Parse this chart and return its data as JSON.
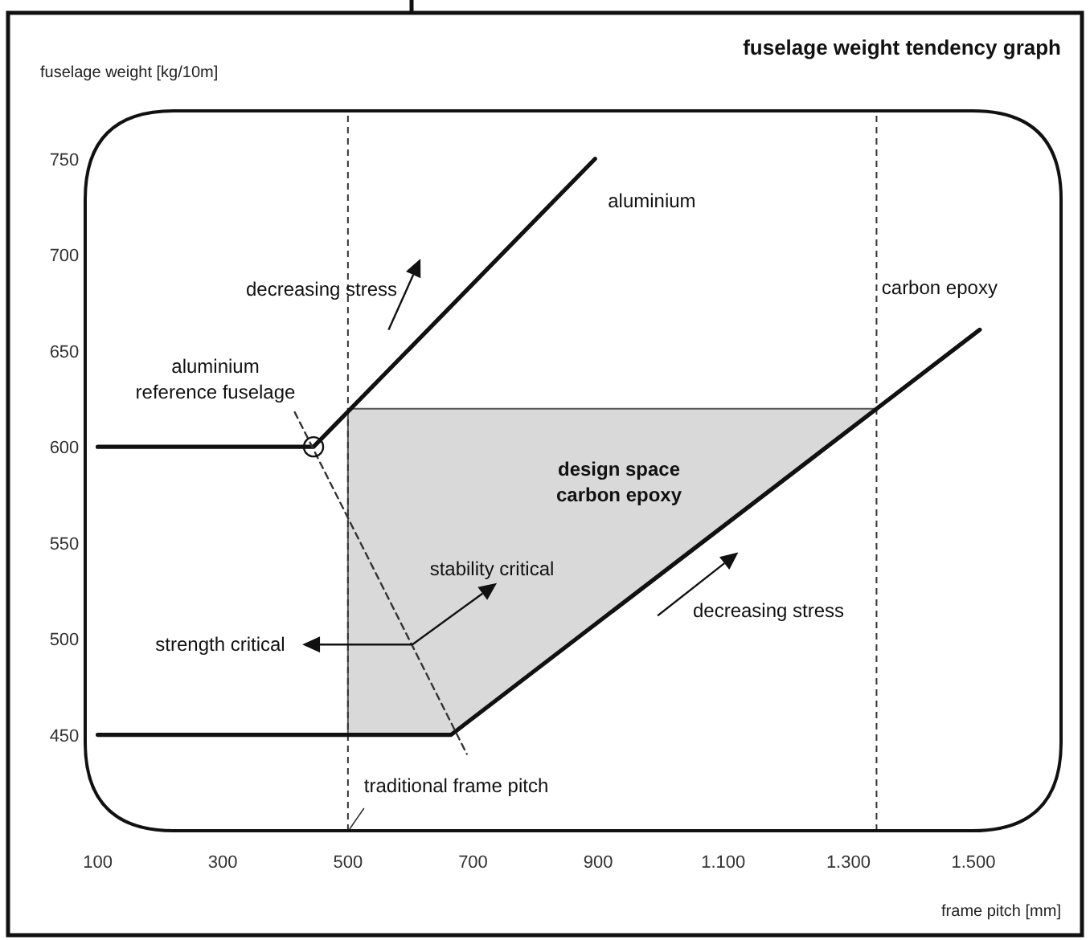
{
  "chart_data": {
    "type": "line",
    "title": "fuselage weight tendency graph",
    "xlabel": "frame pitch [mm]",
    "ylabel": "fuselage weight [kg/10m]",
    "xlim": [
      80,
      1640
    ],
    "ylim": [
      400,
      775
    ],
    "xticks": [
      100,
      300,
      500,
      700,
      900,
      {
        "value": 1100,
        "label": "1.100"
      },
      {
        "value": 1300,
        "label": "1.300"
      },
      {
        "value": 1500,
        "label": "1.500"
      }
    ],
    "yticks": [
      450,
      500,
      550,
      600,
      650,
      700,
      750
    ],
    "grid": false,
    "legend": false,
    "marker": "none",
    "series": [
      {
        "name": "aluminium",
        "color": "#111111",
        "x": [
          100,
          445,
          895
        ],
        "values": [
          600,
          600,
          750
        ]
      },
      {
        "name": "carbon epoxy",
        "color": "#111111",
        "x": [
          100,
          665,
          1510
        ],
        "values": [
          450,
          450,
          661
        ]
      },
      {
        "color": "#333333",
        "line_style": "dashed",
        "x": [
          415,
          690
        ],
        "values": [
          618,
          440
        ]
      }
    ],
    "ref_lines": [
      {
        "axis": "x",
        "value": 500,
        "label": "traditional frame pitch",
        "line_style": "dashed",
        "color": "#333333"
      },
      {
        "axis": "x",
        "value": 1345,
        "line_style": "dashed",
        "color": "#333333"
      }
    ],
    "annotations": [
      "aluminium\nreference fuselage",
      "decreasing stress",
      "design space\ncarbon epoxy",
      {
        "text": "stability critical",
        "x": 603,
        "y": 497
      },
      "strength critical",
      "decreasing stress"
    ]
  }
}
